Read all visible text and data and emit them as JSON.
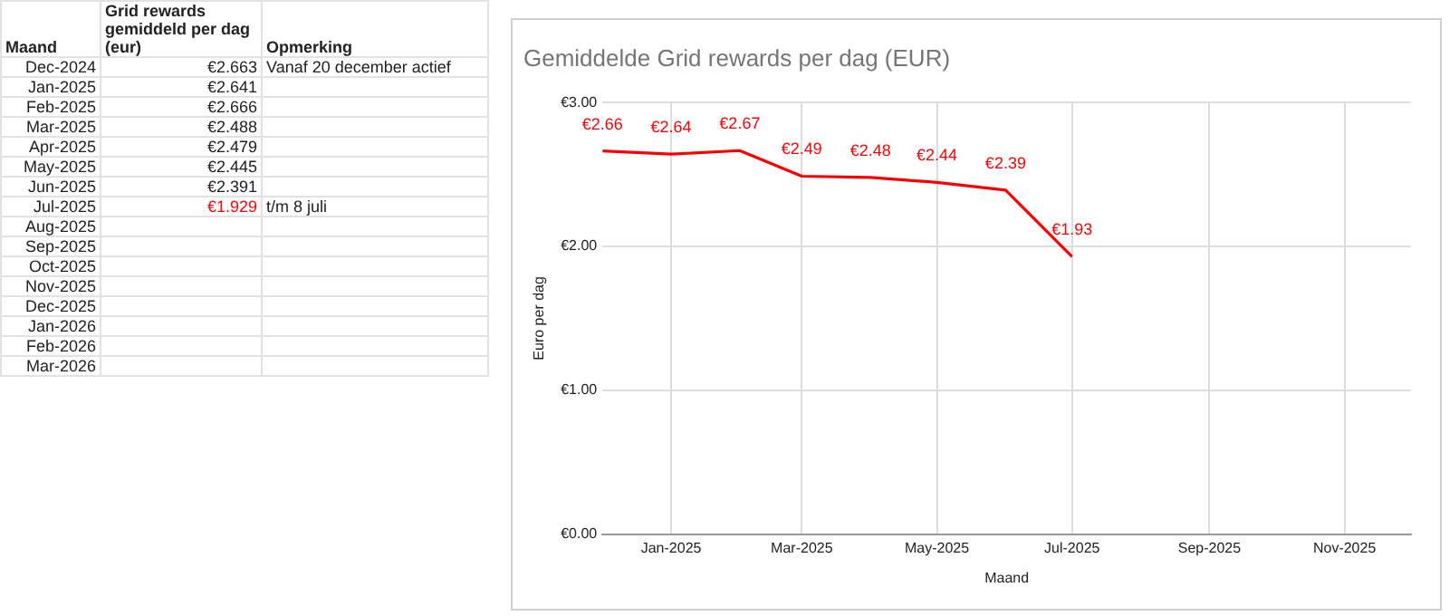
{
  "chart_data": [
    {
      "type": "other",
      "xlabel": "Maand",
      "ylabel": "Grid rewards gemiddeld per dag (eur)",
      "categories": [
        "Dec-2024",
        "Jan-2025",
        "Feb-2025",
        "Mar-2025",
        "Apr-2025",
        "May-2025",
        "Jun-2025",
        "Jul-2025",
        "Aug-2025",
        "Sep-2025",
        "Oct-2025",
        "Nov-2025",
        "Dec-2025",
        "Jan-2026",
        "Feb-2026",
        "Mar-2026"
      ],
      "values": [
        2.663,
        2.641,
        2.666,
        2.488,
        2.479,
        2.445,
        2.391,
        1.929,
        null,
        null,
        null,
        null,
        null,
        null,
        null,
        null
      ],
      "value_labels": [
        "€2.663",
        "€2.641",
        "€2.666",
        "€2.488",
        "€2.479",
        "€2.445",
        "€2.391",
        "€1.929",
        null,
        null,
        null,
        null,
        null,
        null,
        null,
        null
      ],
      "colors": [
        "#222222",
        "#222222",
        "#222222",
        "#222222",
        "#222222",
        "#222222",
        "#222222",
        "#ff0000",
        null,
        null,
        null,
        null,
        null,
        null,
        null,
        null
      ],
      "annotations": [
        "Opmerking",
        {
          "text": "Vanaf 20 december actief",
          "x": "Dec-2024"
        },
        {
          "text": "t/m 8 juli",
          "x": "Jul-2025"
        }
      ]
    },
    {
      "type": "line",
      "title": "Gemiddelde Grid rewards per dag (EUR)",
      "xlabel": "Maand",
      "ylabel": "Euro per dag",
      "x": [
        "2024-12",
        "2025-01",
        "2025-02",
        "2025-03",
        "2025-04",
        "2025-05",
        "2025-06",
        "2025-07"
      ],
      "values": [
        2.663,
        2.641,
        2.666,
        2.488,
        2.479,
        2.445,
        2.391,
        1.929
      ],
      "value_labels": [
        "€2.66",
        "€2.64",
        "€2.67",
        "€2.49",
        "€2.48",
        "€2.44",
        "€2.39",
        "€1.93"
      ],
      "color": "#ff0000",
      "xlim": [
        "2024-12",
        "2025-12"
      ],
      "xticks": [
        {
          "value": "2025-01",
          "label": "Jan-2025"
        },
        {
          "value": "2025-03",
          "label": "Mar-2025"
        },
        {
          "value": "2025-05",
          "label": "May-2025"
        },
        {
          "value": "2025-07",
          "label": "Jul-2025"
        },
        {
          "value": "2025-09",
          "label": "Sep-2025"
        },
        {
          "value": "2025-11",
          "label": "Nov-2025"
        }
      ],
      "ylim": [
        0,
        3
      ],
      "yticks": [
        {
          "value": 0,
          "label": "€0.00"
        },
        {
          "value": 1,
          "label": "€1.00"
        },
        {
          "value": 2,
          "label": "€2.00"
        },
        {
          "value": 3,
          "label": "€3.00"
        }
      ],
      "grid": true,
      "legend": false,
      "marker": "none"
    }
  ]
}
